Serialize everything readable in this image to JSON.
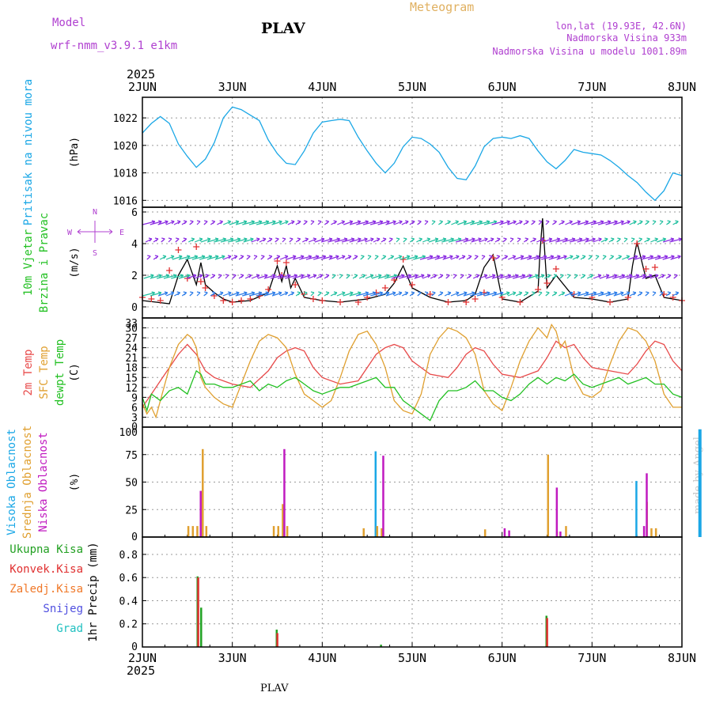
{
  "header": {
    "model_label": "Model",
    "model_value": "wrf-nmm_v3.9.1 e1km",
    "station": "PLAV",
    "title": "Meteogram",
    "lonlat": "lon,lat (19.93E, 42.6N)",
    "elevation": "Nadmorska Visina 933m",
    "model_elevation": "Nadmorska Visina u modelu 1001.89m",
    "year": "2025",
    "footer_station": "PLAV",
    "credit": "made by Angel"
  },
  "colors": {
    "pressure": "#1aa7e6",
    "wind_speed": "#000000",
    "gust_markers": "#e03030",
    "temp_2m": "#e84a4a",
    "temp_sfc": "#e0a030",
    "dewpoint": "#22c022",
    "cloud_high": "#1aa7e6",
    "cloud_mid": "#e0a030",
    "cloud_low": "#c01ac0",
    "precip_total": "#22a022",
    "precip_conv": "#e03030",
    "precip_freeze": "#f07828",
    "snow": "#5050e0",
    "graupel": "#20c0c0",
    "label_magenta": "#b040d0"
  },
  "chart_data": {
    "type": "line",
    "x_axis": {
      "tick_labels": [
        "2JUN",
        "3JUN",
        "4JUN",
        "5JUN",
        "6JUN",
        "7JUN",
        "8JUN"
      ],
      "year": "2025",
      "range_days": [
        0,
        6
      ]
    },
    "panels": [
      {
        "id": "pressure",
        "ylabel_lines": [
          "Pritisak na nivou mora"
        ],
        "unit": "(hPa)",
        "yticks": [
          1016,
          1018,
          1020,
          1022
        ],
        "ylim": [
          1015.5,
          1023.5
        ],
        "series": [
          {
            "key": "pressure",
            "color_key": "pressure",
            "x": [
              0,
              0.1,
              0.2,
              0.3,
              0.4,
              0.5,
              0.6,
              0.7,
              0.8,
              0.9,
              1.0,
              1.1,
              1.2,
              1.3,
              1.4,
              1.5,
              1.6,
              1.7,
              1.8,
              1.9,
              2.0,
              2.1,
              2.2,
              2.3,
              2.4,
              2.5,
              2.6,
              2.7,
              2.8,
              2.9,
              3.0,
              3.1,
              3.2,
              3.3,
              3.4,
              3.5,
              3.6,
              3.7,
              3.8,
              3.9,
              4.0,
              4.1,
              4.2,
              4.3,
              4.4,
              4.5,
              4.6,
              4.7,
              4.8,
              4.9,
              5.0,
              5.1,
              5.2,
              5.3,
              5.4,
              5.5,
              5.6,
              5.7,
              5.8,
              5.9,
              6.0
            ],
            "y": [
              1020.9,
              1021.6,
              1022.1,
              1021.6,
              1020.1,
              1019.2,
              1018.4,
              1019.0,
              1020.2,
              1022.0,
              1022.8,
              1022.6,
              1022.2,
              1021.8,
              1020.4,
              1019.4,
              1018.7,
              1018.6,
              1019.6,
              1020.9,
              1021.7,
              1021.8,
              1021.9,
              1021.8,
              1020.6,
              1019.6,
              1018.7,
              1018.0,
              1018.7,
              1019.9,
              1020.6,
              1020.5,
              1020.1,
              1019.5,
              1018.4,
              1017.6,
              1017.5,
              1018.5,
              1019.9,
              1020.5,
              1020.6,
              1020.5,
              1020.7,
              1020.5,
              1019.6,
              1018.8,
              1018.3,
              1018.9,
              1019.7,
              1019.5,
              1019.4,
              1019.3,
              1018.9,
              1018.4,
              1017.8,
              1017.3,
              1016.6,
              1016.0,
              1016.7,
              1018.0,
              1017.8
            ]
          }
        ]
      },
      {
        "id": "wind",
        "ylabel_lines": [
          "10m Vjetar",
          "Brzina i Pravac"
        ],
        "unit": "(m/s)",
        "compass": {
          "n": "N",
          "s": "S",
          "w": "W",
          "e": "E"
        },
        "yticks": [
          0,
          2,
          4,
          6
        ],
        "ylim": [
          -0.7,
          6.3
        ],
        "series": [
          {
            "key": "wind_speed",
            "color_key": "wind_speed",
            "x": [
              0,
              0.15,
              0.3,
              0.4,
              0.5,
              0.6,
              0.65,
              0.7,
              0.8,
              0.9,
              1.0,
              1.2,
              1.4,
              1.5,
              1.55,
              1.6,
              1.65,
              1.7,
              1.8,
              2.0,
              2.2,
              2.5,
              2.7,
              2.8,
              2.9,
              3.0,
              3.2,
              3.4,
              3.6,
              3.7,
              3.8,
              3.9,
              4.0,
              4.2,
              4.4,
              4.42,
              4.45,
              4.5,
              4.6,
              4.8,
              5.0,
              5.2,
              5.4,
              5.45,
              5.5,
              5.6,
              5.7,
              5.8,
              6.0
            ],
            "y": [
              0.4,
              0.3,
              0.2,
              2.0,
              3.0,
              1.4,
              2.8,
              1.4,
              0.9,
              0.5,
              0.3,
              0.4,
              0.9,
              2.6,
              1.6,
              2.6,
              1.2,
              1.8,
              0.6,
              0.4,
              0.3,
              0.5,
              0.8,
              1.5,
              2.6,
              1.2,
              0.6,
              0.3,
              0.4,
              0.8,
              2.5,
              3.3,
              0.5,
              0.3,
              1.0,
              3.3,
              5.6,
              1.2,
              2.0,
              0.6,
              0.5,
              0.3,
              0.5,
              2.6,
              4.1,
              1.8,
              2.0,
              0.6,
              0.4
            ]
          },
          {
            "key": "gust",
            "color_key": "gust_markers",
            "x": [
              0,
              0.1,
              0.2,
              0.3,
              0.4,
              0.5,
              0.6,
              0.65,
              0.7,
              0.8,
              0.9,
              1.0,
              1.1,
              1.2,
              1.3,
              1.4,
              1.5,
              1.55,
              1.6,
              1.7,
              1.8,
              1.9,
              2.0,
              2.2,
              2.4,
              2.5,
              2.6,
              2.7,
              2.8,
              2.9,
              3.0,
              3.2,
              3.4,
              3.6,
              3.7,
              3.8,
              3.9,
              4.0,
              4.2,
              4.4,
              4.45,
              4.5,
              4.6,
              4.8,
              5.0,
              5.2,
              5.4,
              5.5,
              5.6,
              5.7,
              5.8,
              5.9,
              6.0
            ],
            "y": [
              0.6,
              0.5,
              0.4,
              2.3,
              3.6,
              1.8,
              3.8,
              1.6,
              1.2,
              0.7,
              0.4,
              0.3,
              0.4,
              0.5,
              0.7,
              1.1,
              2.9,
              2.0,
              2.8,
              1.4,
              0.8,
              0.5,
              0.4,
              0.3,
              0.3,
              0.6,
              0.9,
              1.2,
              1.7,
              3.0,
              1.4,
              0.8,
              0.3,
              0.3,
              0.5,
              0.9,
              3.1,
              0.6,
              0.3,
              1.1,
              4.2,
              1.5,
              2.4,
              0.8,
              0.6,
              0.3,
              0.6,
              4.0,
              2.4,
              2.5,
              0.8,
              0.6,
              0.4
            ]
          }
        ]
      },
      {
        "id": "temperature",
        "ylabel_lines": [
          "2m Temp",
          "SFC Temp",
          "dewpt Temp"
        ],
        "unit": "(C)",
        "yticks": [
          0,
          3,
          6,
          9,
          12,
          15,
          18,
          21,
          24,
          27,
          30,
          33
        ],
        "ylim": [
          0,
          33
        ],
        "series": [
          {
            "key": "temp_2m",
            "color_key": "temp_2m",
            "x": [
              0,
              0.1,
              0.2,
              0.3,
              0.4,
              0.5,
              0.6,
              0.7,
              0.8,
              0.9,
              1.0,
              1.2,
              1.4,
              1.5,
              1.6,
              1.7,
              1.8,
              1.9,
              2.0,
              2.2,
              2.4,
              2.5,
              2.6,
              2.7,
              2.8,
              2.9,
              3.0,
              3.2,
              3.4,
              3.5,
              3.6,
              3.7,
              3.8,
              3.9,
              4.0,
              4.2,
              4.4,
              4.5,
              4.6,
              4.7,
              4.8,
              4.9,
              5.0,
              5.2,
              5.4,
              5.5,
              5.6,
              5.7,
              5.8,
              5.9,
              6.0
            ],
            "y": [
              6,
              10,
              14,
              18,
              22,
              25,
              22,
              17,
              15,
              14,
              13,
              12,
              17,
              21,
              23,
              24,
              23,
              18,
              15,
              13,
              14,
              18,
              22,
              24,
              25,
              24,
              20,
              16,
              15,
              18,
              22,
              24,
              23,
              19,
              16,
              15,
              17,
              21,
              26,
              24,
              25,
              21,
              18,
              17,
              16,
              19,
              23,
              26,
              25,
              20,
              17
            ]
          },
          {
            "key": "temp_sfc",
            "color_key": "temp_sfc",
            "x": [
              0,
              0.05,
              0.1,
              0.15,
              0.2,
              0.3,
              0.4,
              0.5,
              0.55,
              0.6,
              0.65,
              0.7,
              0.8,
              0.9,
              1.0,
              1.1,
              1.2,
              1.3,
              1.4,
              1.5,
              1.6,
              1.7,
              1.8,
              1.9,
              2.0,
              2.1,
              2.2,
              2.3,
              2.4,
              2.5,
              2.6,
              2.7,
              2.8,
              2.9,
              3.0,
              3.1,
              3.2,
              3.3,
              3.4,
              3.5,
              3.6,
              3.7,
              3.8,
              3.9,
              4.0,
              4.1,
              4.2,
              4.3,
              4.4,
              4.5,
              4.55,
              4.6,
              4.65,
              4.7,
              4.8,
              4.9,
              5.0,
              5.1,
              5.2,
              5.3,
              5.4,
              5.5,
              5.6,
              5.7,
              5.8,
              5.9,
              6.0
            ],
            "y": [
              7,
              4,
              6,
              3,
              8,
              18,
              25,
              28,
              27,
              24,
              15,
              12,
              9,
              7,
              6,
              13,
              20,
              26,
              28,
              27,
              24,
              16,
              10,
              8,
              6,
              8,
              15,
              23,
              28,
              29,
              25,
              18,
              8,
              5,
              4,
              10,
              22,
              27,
              30,
              29,
              27,
              22,
              11,
              7,
              5,
              12,
              20,
              26,
              30,
              27,
              31,
              29,
              24,
              26,
              15,
              10,
              9,
              11,
              19,
              26,
              30,
              29,
              26,
              20,
              10,
              6,
              6
            ]
          },
          {
            "key": "dewpoint",
            "color_key": "dewpoint",
            "x": [
              0,
              0.05,
              0.1,
              0.2,
              0.3,
              0.4,
              0.5,
              0.6,
              0.65,
              0.7,
              0.8,
              0.9,
              1.0,
              1.2,
              1.3,
              1.4,
              1.5,
              1.6,
              1.7,
              1.8,
              1.9,
              2.0,
              2.2,
              2.3,
              2.4,
              2.5,
              2.6,
              2.7,
              2.8,
              2.9,
              3.0,
              3.1,
              3.2,
              3.3,
              3.4,
              3.5,
              3.6,
              3.7,
              3.8,
              3.9,
              4.0,
              4.1,
              4.2,
              4.3,
              4.4,
              4.5,
              4.6,
              4.7,
              4.8,
              4.9,
              5.0,
              5.2,
              5.3,
              5.4,
              5.5,
              5.6,
              5.7,
              5.8,
              5.9,
              6.0
            ],
            "y": [
              9,
              5,
              10,
              8,
              11,
              12,
              10,
              17,
              16,
              13,
              13,
              12,
              12,
              14,
              11,
              13,
              12,
              14,
              15,
              13,
              11,
              10,
              12,
              12,
              13,
              14,
              15,
              12,
              12,
              8,
              6,
              4,
              2,
              8,
              11,
              11,
              12,
              14,
              11,
              11,
              9,
              8,
              10,
              13,
              15,
              13,
              15,
              14,
              16,
              13,
              12,
              14,
              15,
              13,
              14,
              15,
              13,
              13,
              10,
              9
            ]
          }
        ]
      },
      {
        "id": "cloud",
        "ylabel_lines": [
          "Visoka Oblacnost",
          "Srednja Oblacnost",
          "Niska Oblacnost"
        ],
        "unit": "(%)",
        "yticks": [
          0,
          25,
          50,
          75,
          100
        ],
        "ylim": [
          0,
          100
        ],
        "bars": {
          "high": {
            "color_key": "cloud_high",
            "x": [
              2.6,
              5.5,
              6.2
            ],
            "y": [
              78,
              51,
              98
            ]
          },
          "mid": {
            "color_key": "cloud_mid",
            "x": [
              0.5,
              0.55,
              0.6,
              0.66,
              0.7,
              1.45,
              1.5,
              1.55,
              1.6,
              2.45,
              2.6,
              2.65,
              3.8,
              4.5,
              4.6,
              4.7,
              5.6,
              5.65,
              5.7
            ],
            "y": [
              10,
              10,
              10,
              80,
              10,
              10,
              10,
              30,
              10,
              8,
              10,
              8,
              7,
              75,
              5,
              10,
              32,
              8,
              8
            ]
          },
          "low": {
            "color_key": "cloud_low",
            "x": [
              0.62,
              1.55,
              2.65,
              4.0,
              4.05,
              4.58,
              4.62,
              5.55,
              5.58
            ],
            "y": [
              42,
              80,
              74,
              8,
              6,
              45,
              5,
              10,
              58
            ]
          }
        }
      },
      {
        "id": "precip",
        "ylabel_lines": [
          "1hr Precip (mm)"
        ],
        "legend": [
          "Ukupna Kisa",
          "Konvek.Kisa",
          "Zaledj.Kisa",
          "Snijeg",
          "Grad"
        ],
        "yticks": [
          0,
          0.2,
          0.4,
          0.6,
          0.8
        ],
        "ylim": [
          0,
          0.95
        ],
        "bars": {
          "total": {
            "color_key": "precip_total",
            "x": [
              0.62,
              0.66,
              1.5,
              2.66,
              4.5
            ],
            "y": [
              0.61,
              0.34,
              0.15,
              0.02,
              0.27
            ]
          },
          "convective": {
            "color_key": "precip_conv",
            "x": [
              0.61,
              1.49,
              4.49
            ],
            "y": [
              0.6,
              0.12,
              0.25
            ]
          }
        }
      }
    ]
  }
}
